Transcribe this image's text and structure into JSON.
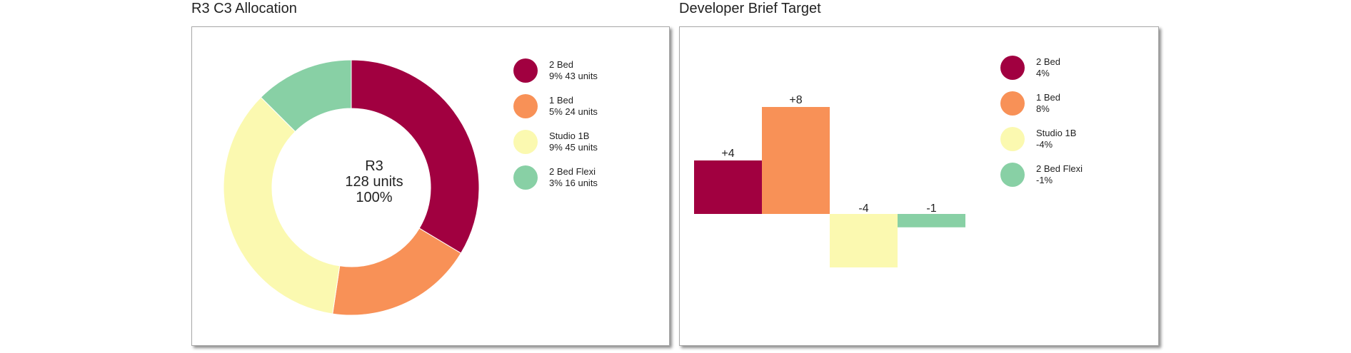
{
  "chart_data": [
    {
      "type": "pie",
      "variant": "donut",
      "title": "R3 C3 Allocation",
      "center": {
        "line1": "R3",
        "line2": "128 units",
        "line3": "100%"
      },
      "slices": [
        {
          "label": "2 Bed",
          "detail": "9% 43 units",
          "units": 43,
          "color": "#a10040"
        },
        {
          "label": "1 Bed",
          "detail": "5% 24 units",
          "units": 24,
          "color": "#f89157"
        },
        {
          "label": "Studio 1B",
          "detail": "9% 45 units",
          "units": 45,
          "color": "#fbf9b0"
        },
        {
          "label": "2 Bed Flexi",
          "detail": "3% 16 units",
          "units": 16,
          "color": "#88d0a5"
        }
      ],
      "legend": "right"
    },
    {
      "type": "bar",
      "title": "Developer Brief Target",
      "categories": [
        "2 Bed",
        "1 Bed",
        "Studio 1B",
        "2 Bed Flexi"
      ],
      "values": [
        4,
        8,
        -4,
        -1
      ],
      "value_labels": [
        "+4",
        "+8",
        "-4",
        "-1"
      ],
      "legend_values": [
        "4%",
        "8%",
        "-4%",
        "-1%"
      ],
      "colors": [
        "#a10040",
        "#f89157",
        "#fbf9b0",
        "#88d0a5"
      ],
      "ylim": [
        -8,
        12
      ],
      "grid": false,
      "legend": "right"
    }
  ]
}
